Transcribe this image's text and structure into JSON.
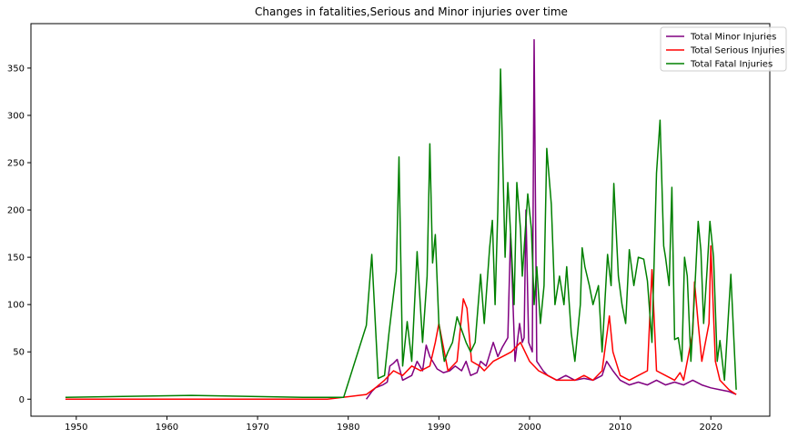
{
  "chart_data": {
    "type": "line",
    "title": "Changes in fatalities,Serious and Minor injuries over time",
    "xlabel": "",
    "ylabel": "",
    "xlim": [
      1945,
      2026.5
    ],
    "ylim": [
      -18,
      397
    ],
    "x_ticks": [
      1950,
      1960,
      1970,
      1980,
      1990,
      2000,
      2010,
      2020
    ],
    "y_ticks": [
      0,
      50,
      100,
      150,
      200,
      250,
      300,
      350
    ],
    "grid": false,
    "legend_position": "top-right",
    "series": [
      {
        "name": "Total Minor Injuries",
        "color": "#800080",
        "points": [
          [
            1982.0,
            0
          ],
          [
            1982.6,
            8
          ],
          [
            1983.0,
            12
          ],
          [
            1983.8,
            15
          ],
          [
            1984.3,
            18
          ],
          [
            1984.6,
            35
          ],
          [
            1985.0,
            38
          ],
          [
            1985.4,
            42
          ],
          [
            1986.0,
            20
          ],
          [
            1987.0,
            25
          ],
          [
            1987.6,
            40
          ],
          [
            1988.2,
            30
          ],
          [
            1988.6,
            57
          ],
          [
            1989.0,
            45
          ],
          [
            1989.8,
            32
          ],
          [
            1990.5,
            28
          ],
          [
            1991.2,
            30
          ],
          [
            1991.8,
            35
          ],
          [
            1992.5,
            30
          ],
          [
            1993.0,
            40
          ],
          [
            1993.5,
            25
          ],
          [
            1994.2,
            28
          ],
          [
            1994.6,
            40
          ],
          [
            1995.2,
            35
          ],
          [
            1996.0,
            60
          ],
          [
            1996.5,
            45
          ],
          [
            1997.0,
            55
          ],
          [
            1997.6,
            65
          ],
          [
            1997.9,
            175
          ],
          [
            1998.4,
            40
          ],
          [
            1998.9,
            80
          ],
          [
            1999.2,
            60
          ],
          [
            1999.4,
            65
          ],
          [
            1999.6,
            200
          ],
          [
            1999.9,
            60
          ],
          [
            2000.3,
            50
          ],
          [
            2000.5,
            380
          ],
          [
            2000.8,
            40
          ],
          [
            2001.5,
            30
          ],
          [
            2002.0,
            25
          ],
          [
            2003.0,
            20
          ],
          [
            2004.0,
            25
          ],
          [
            2005.0,
            20
          ],
          [
            2006.0,
            22
          ],
          [
            2007.0,
            20
          ],
          [
            2008.0,
            25
          ],
          [
            2008.5,
            40
          ],
          [
            2009.2,
            30
          ],
          [
            2010.0,
            20
          ],
          [
            2011.0,
            15
          ],
          [
            2012.0,
            18
          ],
          [
            2013.0,
            15
          ],
          [
            2014.0,
            20
          ],
          [
            2015.0,
            15
          ],
          [
            2016.0,
            18
          ],
          [
            2017.0,
            15
          ],
          [
            2018.0,
            20
          ],
          [
            2019.0,
            15
          ],
          [
            2020.0,
            12
          ],
          [
            2021.0,
            10
          ],
          [
            2022.0,
            8
          ],
          [
            2022.8,
            5
          ]
        ]
      },
      {
        "name": "Total Serious Injuries",
        "color": "#ff0000",
        "points": [
          [
            1948.8,
            0
          ],
          [
            1962.7,
            0
          ],
          [
            1977.7,
            0
          ],
          [
            1982.0,
            5
          ],
          [
            1983.0,
            12
          ],
          [
            1984.0,
            20
          ],
          [
            1985.0,
            30
          ],
          [
            1986.0,
            25
          ],
          [
            1987.0,
            35
          ],
          [
            1988.0,
            30
          ],
          [
            1989.0,
            35
          ],
          [
            1989.6,
            60
          ],
          [
            1990.0,
            80
          ],
          [
            1991.0,
            30
          ],
          [
            1992.0,
            40
          ],
          [
            1992.7,
            106
          ],
          [
            1993.1,
            96
          ],
          [
            1993.6,
            40
          ],
          [
            1994.5,
            35
          ],
          [
            1995.0,
            30
          ],
          [
            1996.0,
            40
          ],
          [
            1997.0,
            45
          ],
          [
            1998.0,
            50
          ],
          [
            1999.0,
            60
          ],
          [
            2000.0,
            40
          ],
          [
            2001.0,
            30
          ],
          [
            2002.0,
            25
          ],
          [
            2003.0,
            20
          ],
          [
            2004.0,
            20
          ],
          [
            2005.0,
            20
          ],
          [
            2006.0,
            25
          ],
          [
            2007.0,
            20
          ],
          [
            2008.0,
            30
          ],
          [
            2008.8,
            88
          ],
          [
            2009.2,
            50
          ],
          [
            2010.0,
            25
          ],
          [
            2011.0,
            20
          ],
          [
            2012.0,
            25
          ],
          [
            2013.0,
            30
          ],
          [
            2013.5,
            137
          ],
          [
            2014.0,
            30
          ],
          [
            2015.0,
            25
          ],
          [
            2016.0,
            20
          ],
          [
            2016.6,
            28
          ],
          [
            2017.0,
            20
          ],
          [
            2018.0,
            70
          ],
          [
            2018.2,
            124
          ],
          [
            2018.6,
            80
          ],
          [
            2019.0,
            40
          ],
          [
            2019.8,
            80
          ],
          [
            2020.0,
            162
          ],
          [
            2020.5,
            40
          ],
          [
            2021.0,
            20
          ],
          [
            2022.0,
            10
          ],
          [
            2022.8,
            5
          ]
        ]
      },
      {
        "name": "Total Fatal Injuries",
        "color": "#008000",
        "points": [
          [
            1948.8,
            2
          ],
          [
            1962.7,
            4
          ],
          [
            1975.0,
            2
          ],
          [
            1979.5,
            2
          ],
          [
            1982.0,
            78
          ],
          [
            1982.6,
            153
          ],
          [
            1983.3,
            22
          ],
          [
            1984.0,
            25
          ],
          [
            1984.5,
            70
          ],
          [
            1985.3,
            135
          ],
          [
            1985.6,
            256
          ],
          [
            1986.0,
            35
          ],
          [
            1986.5,
            82
          ],
          [
            1987.0,
            40
          ],
          [
            1987.6,
            156
          ],
          [
            1988.2,
            60
          ],
          [
            1988.7,
            130
          ],
          [
            1989.0,
            270
          ],
          [
            1989.3,
            144
          ],
          [
            1989.6,
            174
          ],
          [
            1990.0,
            80
          ],
          [
            1990.6,
            40
          ],
          [
            1991.0,
            50
          ],
          [
            1991.5,
            60
          ],
          [
            1992.0,
            87
          ],
          [
            1993.0,
            60
          ],
          [
            1993.5,
            50
          ],
          [
            1994.0,
            60
          ],
          [
            1994.6,
            132
          ],
          [
            1995.0,
            80
          ],
          [
            1995.6,
            160
          ],
          [
            1995.9,
            189
          ],
          [
            1996.2,
            100
          ],
          [
            1996.5,
            200
          ],
          [
            1996.8,
            349
          ],
          [
            1997.3,
            150
          ],
          [
            1997.6,
            229
          ],
          [
            1998.0,
            160
          ],
          [
            1998.3,
            100
          ],
          [
            1998.6,
            229
          ],
          [
            1999.0,
            180
          ],
          [
            1999.2,
            130
          ],
          [
            1999.8,
            217
          ],
          [
            2000.2,
            180
          ],
          [
            2000.5,
            100
          ],
          [
            2000.8,
            140
          ],
          [
            2001.2,
            80
          ],
          [
            2001.6,
            120
          ],
          [
            2001.9,
            265
          ],
          [
            2002.4,
            206
          ],
          [
            2002.8,
            100
          ],
          [
            2003.3,
            130
          ],
          [
            2003.8,
            100
          ],
          [
            2004.1,
            140
          ],
          [
            2004.6,
            70
          ],
          [
            2005.0,
            40
          ],
          [
            2005.6,
            100
          ],
          [
            2005.8,
            160
          ],
          [
            2006.1,
            140
          ],
          [
            2006.6,
            120
          ],
          [
            2007.0,
            100
          ],
          [
            2007.6,
            120
          ],
          [
            2008.0,
            50
          ],
          [
            2008.6,
            153
          ],
          [
            2009.0,
            120
          ],
          [
            2009.3,
            228
          ],
          [
            2009.8,
            130
          ],
          [
            2010.2,
            100
          ],
          [
            2010.6,
            80
          ],
          [
            2011.0,
            158
          ],
          [
            2011.5,
            120
          ],
          [
            2012.0,
            150
          ],
          [
            2012.6,
            148
          ],
          [
            2013.0,
            125
          ],
          [
            2013.5,
            60
          ],
          [
            2014.0,
            239
          ],
          [
            2014.4,
            295
          ],
          [
            2014.8,
            162
          ],
          [
            2015.0,
            150
          ],
          [
            2015.4,
            120
          ],
          [
            2015.7,
            224
          ],
          [
            2016.0,
            63
          ],
          [
            2016.4,
            65
          ],
          [
            2016.8,
            40
          ],
          [
            2017.1,
            150
          ],
          [
            2017.4,
            130
          ],
          [
            2017.8,
            40
          ],
          [
            2018.3,
            130
          ],
          [
            2018.6,
            188
          ],
          [
            2018.9,
            157
          ],
          [
            2019.2,
            80
          ],
          [
            2019.6,
            140
          ],
          [
            2019.9,
            188
          ],
          [
            2020.3,
            150
          ],
          [
            2020.7,
            40
          ],
          [
            2021.0,
            62
          ],
          [
            2021.5,
            20
          ],
          [
            2022.2,
            132
          ],
          [
            2022.8,
            10
          ]
        ]
      }
    ]
  }
}
